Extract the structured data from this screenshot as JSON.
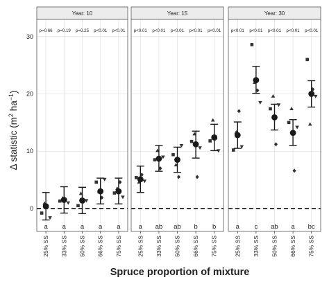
{
  "chart_data": {
    "type": "scatter",
    "ylabel_main": "Δ statistic (m",
    "ylabel_sup1": "2",
    "ylabel_mid": " ha",
    "ylabel_sup2": "−1",
    "ylabel_end": ")",
    "xlabel": "Spruce proportion of mixture",
    "ylim": [
      -4,
      33
    ],
    "yticks": [
      "0",
      "10",
      "20",
      "30"
    ],
    "reference_line": 0,
    "categories": [
      "25% SS",
      "33% SS",
      "50% SS",
      "66% SS",
      "75% SS"
    ],
    "colors": {
      "mean": "#1a1a1a",
      "points": "#333333",
      "grid": "#e3e3e3",
      "strip": "#ececec",
      "frame": "#555555"
    },
    "panels": [
      {
        "title": "Year: 10",
        "pvalues": [
          "p=0.66",
          "p=0.19",
          "p=0.25",
          "p<0.01",
          "p<0.01"
        ],
        "means": [
          0.4,
          1.5,
          1.4,
          3.0,
          3.0
        ],
        "ci_low": [
          -2.0,
          -0.8,
          -0.9,
          0.8,
          0.8
        ],
        "ci_high": [
          2.8,
          3.8,
          3.7,
          5.3,
          5.3
        ],
        "letters": [
          "a",
          "a",
          "a",
          "a",
          "a"
        ],
        "points": [
          [
            -0.8,
            0.9,
            0.2,
            -1.6
          ],
          [
            1.3,
            1.8,
            1.5,
            1.0
          ],
          [
            0.5,
            2.6,
            1.2,
            1.4
          ],
          [
            4.6,
            2.9,
            1.9,
            5.1
          ],
          [
            2.7,
            3.5,
            4.6,
            2.0
          ]
        ]
      },
      {
        "title": "Year: 15",
        "pvalues": [
          "p<0.01",
          "p<0.01",
          "p<0.01",
          "p<0.01",
          "p<0.01"
        ],
        "means": [
          5.1,
          8.7,
          8.5,
          11.2,
          12.4
        ],
        "ci_low": [
          2.8,
          6.5,
          6.3,
          8.8,
          10.1
        ],
        "ci_high": [
          7.4,
          11.0,
          10.7,
          13.5,
          14.7
        ],
        "letters": [
          "a",
          "ab",
          "ab",
          "b",
          "b"
        ],
        "points": [
          [
            5.4,
            4.6,
            5.9,
            4.8
          ],
          [
            8.5,
            10.1,
            7.0,
            9.0
          ],
          [
            9.4,
            7.6,
            5.5,
            11.0
          ],
          [
            11.7,
            13.0,
            5.5,
            10.6
          ],
          [
            11.8,
            15.4,
            12.2,
            10.1
          ]
        ]
      },
      {
        "title": "Year: 30",
        "pvalues": [
          "p<0.01",
          "p<0.01",
          "p<0.01",
          "p<0.01",
          "p<0.01"
        ],
        "means": [
          12.8,
          22.4,
          15.9,
          13.2,
          20.0
        ],
        "ci_low": [
          10.5,
          20.1,
          13.7,
          11.0,
          17.7
        ],
        "ci_high": [
          15.1,
          24.8,
          18.2,
          15.5,
          22.3
        ],
        "letters": [
          "a",
          "c",
          "ab",
          "a",
          "bc"
        ],
        "points": [
          [
            10.2,
            13.3,
            17.0,
            10.8
          ],
          [
            28.6,
            22.0,
            20.6,
            18.5
          ],
          [
            17.4,
            19.6,
            11.2,
            18.1
          ],
          [
            15.0,
            17.4,
            6.6,
            14.2
          ],
          [
            26.0,
            14.7,
            20.8,
            19.6
          ]
        ]
      }
    ]
  }
}
